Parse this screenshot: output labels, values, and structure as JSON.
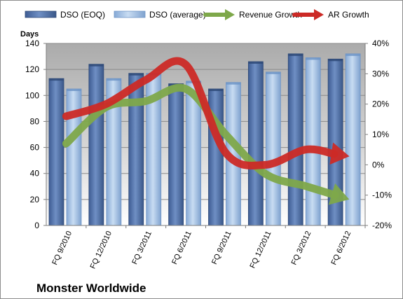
{
  "chart_data": {
    "type": "bar",
    "title": "Monster Worldwide",
    "ylabel": "Days",
    "categories": [
      "FQ 9/2010",
      "FQ 12/2010",
      "FQ 3/2011",
      "FQ 6/2011",
      "FQ 9/2011",
      "FQ 12/2011",
      "FQ 3/2012",
      "FQ 6/2012"
    ],
    "ylim": [
      0,
      140
    ],
    "yticks": [
      0,
      20,
      40,
      60,
      80,
      100,
      120,
      140
    ],
    "y2lim": [
      -20,
      40
    ],
    "y2ticks": [
      "-20%",
      "-10%",
      "0%",
      "10%",
      "20%",
      "30%",
      "40%"
    ],
    "y2values": [
      -20,
      -10,
      0,
      10,
      20,
      30,
      40
    ],
    "series": [
      {
        "name": "DSO (EOQ)",
        "kind": "bar",
        "color": "#4f6fa6",
        "values": [
          113,
          124,
          117,
          109,
          105,
          126,
          132,
          128
        ]
      },
      {
        "name": "DSO (average)",
        "kind": "bar",
        "color": "#a6c4e6",
        "values": [
          105,
          113,
          117,
          111,
          110,
          118,
          129,
          132
        ]
      },
      {
        "name": "Revenue Growth",
        "kind": "line",
        "axis": "secondary",
        "color": "#7ea84a",
        "values": [
          7,
          19,
          21,
          25,
          10,
          -3,
          -7,
          -11
        ]
      },
      {
        "name": "AR Growth",
        "kind": "line",
        "axis": "secondary",
        "color": "#cc2a26",
        "values": [
          16,
          20,
          28,
          33,
          4,
          0,
          5,
          3
        ]
      }
    ],
    "legend_position": "top",
    "grid": true
  }
}
